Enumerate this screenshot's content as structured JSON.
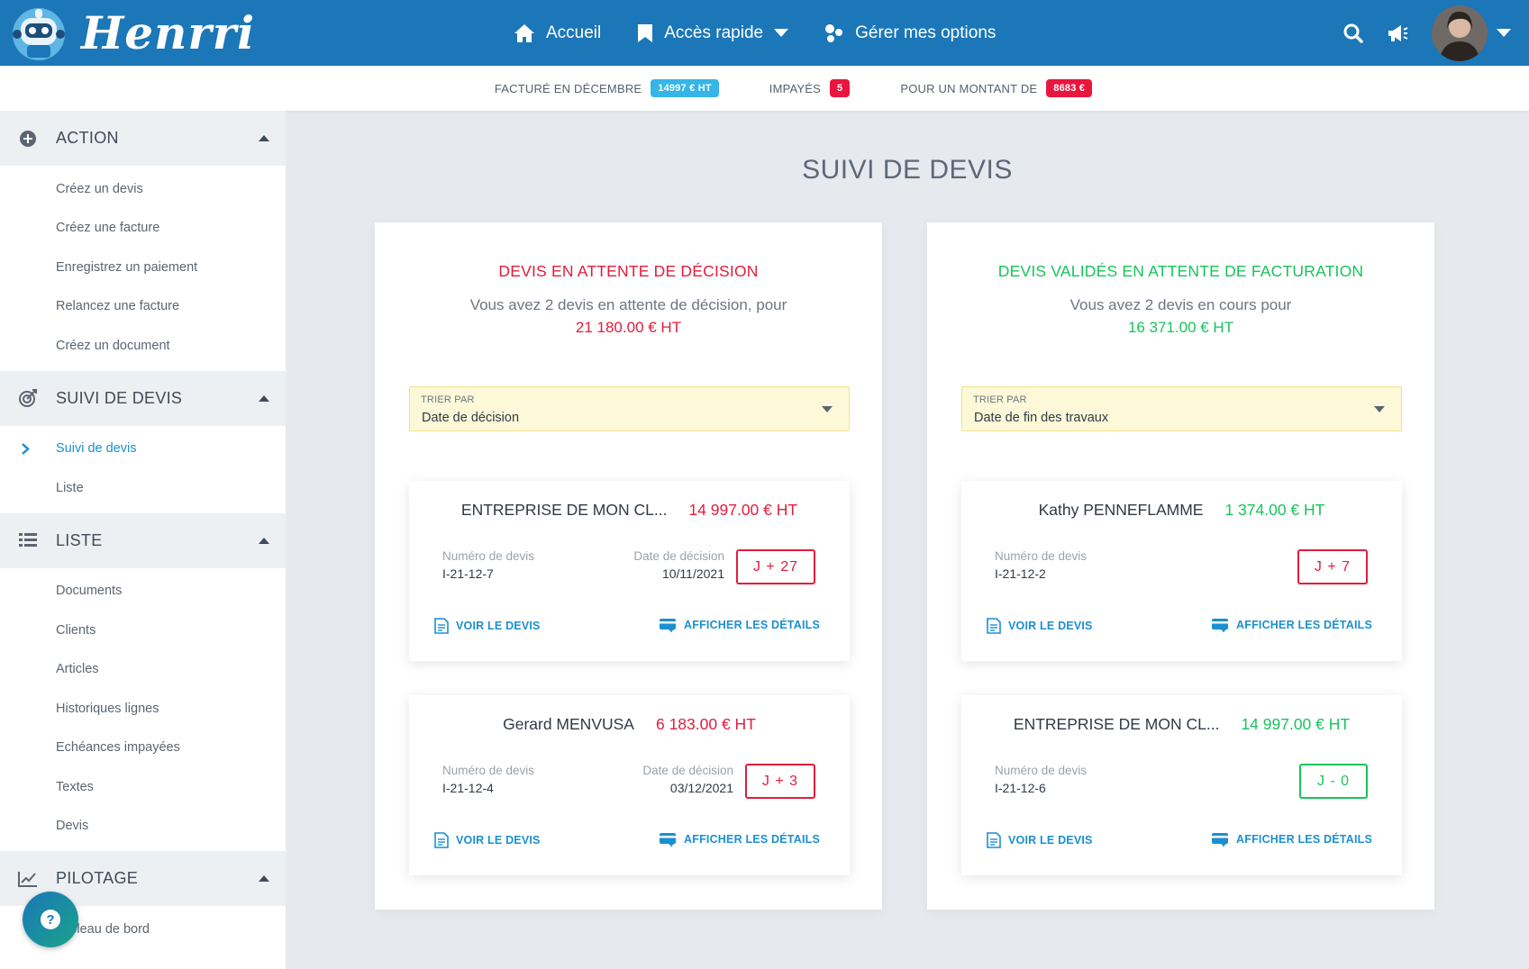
{
  "app": {
    "name": "Henrri"
  },
  "nav": {
    "home": "Accueil",
    "quick_access": "Accès rapide",
    "options": "Gérer mes options"
  },
  "stats": {
    "invoiced_label": "FACTURÉ EN DÉCEMBRE",
    "invoiced_value": "14997 € HT",
    "unpaid_label": "IMPAYÉS",
    "unpaid_count": "5",
    "amount_label": "POUR UN MONTANT DE",
    "amount_value": "8683 €"
  },
  "sidebar": {
    "sections": [
      {
        "title": "ACTION",
        "items": [
          "Créez un devis",
          "Créez une facture",
          "Enregistrez un paiement",
          "Relancez une facture",
          "Créez un document"
        ]
      },
      {
        "title": "SUIVI DE DEVIS",
        "items": [
          "Suivi de devis",
          "Liste"
        ],
        "active_index": 0
      },
      {
        "title": "LISTE",
        "items": [
          "Documents",
          "Clients",
          "Articles",
          "Historiques lignes",
          "Echéances impayées",
          "Textes",
          "Devis"
        ]
      },
      {
        "title": "PILOTAGE",
        "items": [
          "Tableau de bord"
        ]
      }
    ]
  },
  "main": {
    "title": "SUIVI DE DEVIS",
    "panels": [
      {
        "title": "DEVIS EN ATTENTE DE DÉCISION",
        "description": "Vous avez 2 devis en attente de décision, pour",
        "amount": "21 180.00 € HT",
        "sort_label": "TRIER PAR",
        "sort_value": "Date de décision",
        "cards": [
          {
            "name": "ENTREPRISE DE MON CL...",
            "amount": "14 997.00 € HT",
            "num_label": "Numéro de devis",
            "num": "I-21-12-7",
            "date_label": "Date de décision",
            "date": "10/11/2021",
            "tag": "J + 27",
            "view": "VOIR LE DEVIS",
            "details": "AFFICHER LES DÉTAILS"
          },
          {
            "name": "Gerard MENVUSA",
            "amount": "6 183.00 € HT",
            "num_label": "Numéro de devis",
            "num": "I-21-12-4",
            "date_label": "Date de décision",
            "date": "03/12/2021",
            "tag": "J + 3",
            "view": "VOIR LE DEVIS",
            "details": "AFFICHER LES DÉTAILS"
          }
        ]
      },
      {
        "title": "DEVIS VALIDÉS EN ATTENTE DE FACTURATION",
        "description": "Vous avez 2 devis en cours pour",
        "amount": "16 371.00 € HT",
        "sort_label": "TRIER PAR",
        "sort_value": "Date de fin des travaux",
        "cards": [
          {
            "name": "Kathy PENNEFLAMME",
            "amount": "1 374.00 € HT",
            "num_label": "Numéro de devis",
            "num": "I-21-12-2",
            "tag": "J + 7",
            "view": "VOIR LE DEVIS",
            "details": "AFFICHER LES DÉTAILS"
          },
          {
            "name": "ENTREPRISE DE MON CL...",
            "amount": "14 997.00 € HT",
            "num_label": "Numéro de devis",
            "num": "I-21-12-6",
            "tag": "J - 0",
            "view": "VOIR LE DEVIS",
            "details": "AFFICHER LES DÉTAILS"
          }
        ]
      }
    ]
  },
  "colors": {
    "topbar": "#1b77b8",
    "red": "#e11d3c",
    "green": "#17c45b",
    "link": "#1b8fd1",
    "badge_blue": "#35b5e8",
    "badge_red": "#e8163f"
  }
}
